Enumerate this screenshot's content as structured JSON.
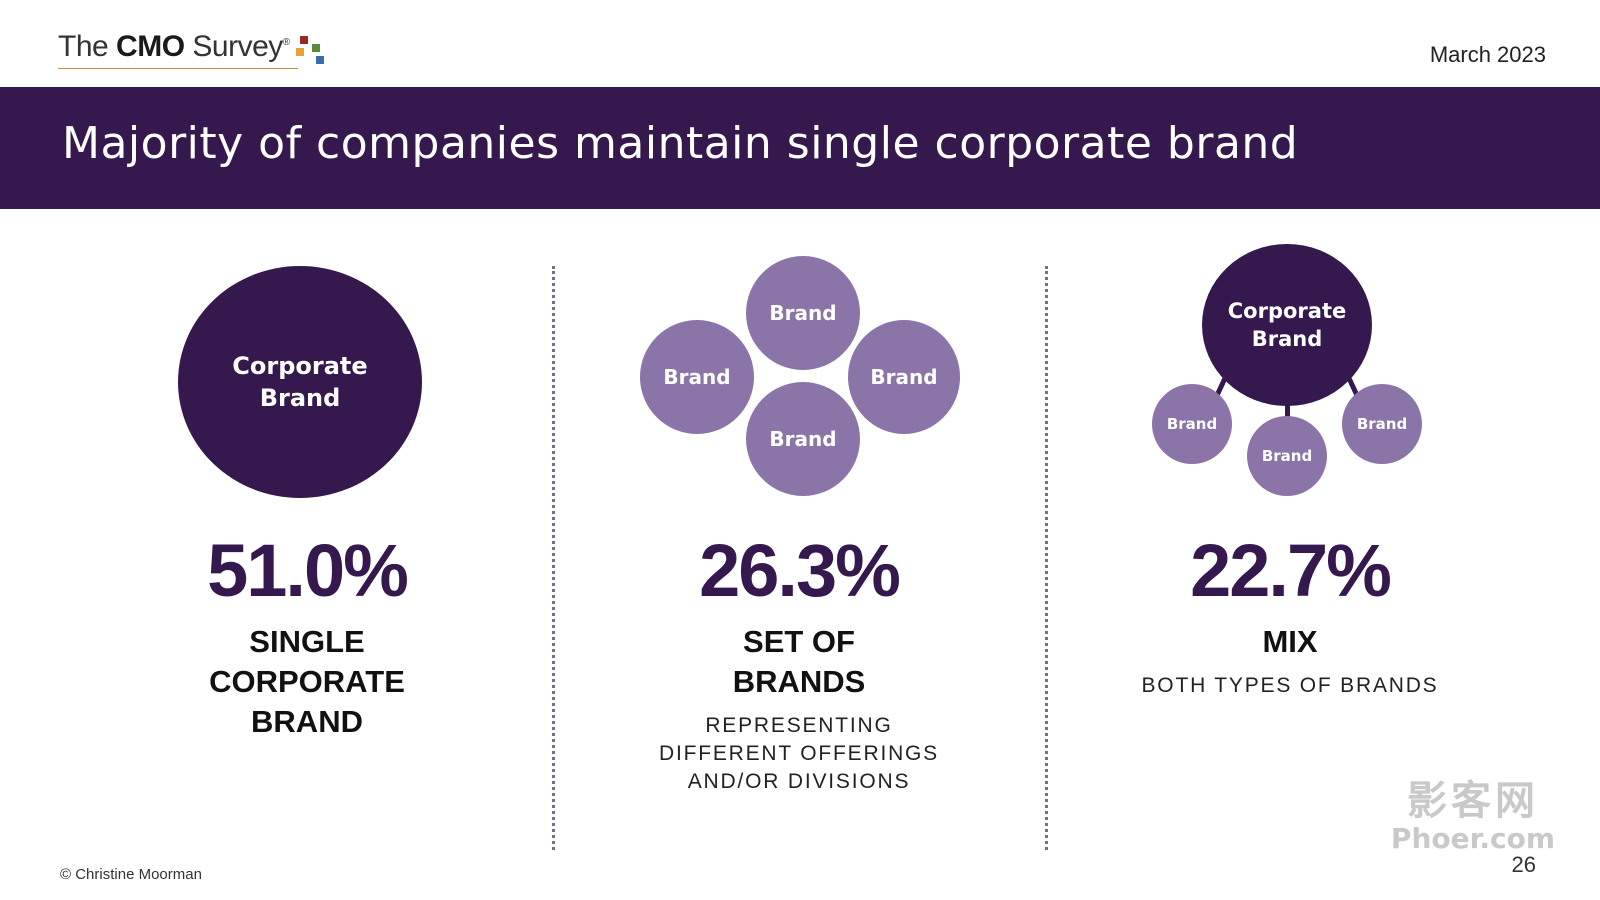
{
  "header": {
    "logo": {
      "prefix": "The",
      "cmo": "CMO",
      "suffix": "Survey",
      "registered": "®"
    },
    "date": "March 2023"
  },
  "banner": {
    "title": "Majority of companies maintain single corporate brand"
  },
  "columns": [
    {
      "circle_label_line1": "Corporate",
      "circle_label_line2": "Brand",
      "percent": "51.0%",
      "label_lines": [
        "SINGLE",
        "CORPORATE",
        "BRAND"
      ]
    },
    {
      "circles": [
        "Brand",
        "Brand",
        "Brand",
        "Brand"
      ],
      "percent": "26.3%",
      "label_lines": [
        "SET OF",
        "BRANDS"
      ],
      "sub_lines": [
        "REPRESENTING",
        "DIFFERENT OFFERINGS",
        "AND/OR DIVISIONS"
      ]
    },
    {
      "main_line1": "Corporate",
      "main_line2": "Brand",
      "small_circles": [
        "Brand",
        "Brand",
        "Brand"
      ],
      "percent": "22.7%",
      "label_lines": [
        "MIX"
      ],
      "sub_lines": [
        "BOTH TYPES OF BRANDS"
      ]
    }
  ],
  "footer": {
    "copyright": "© Christine Moorman",
    "page_number": "26"
  },
  "watermark": {
    "line1": "影客网",
    "line2": "Phoer.com"
  },
  "colors": {
    "primary": "#35184d",
    "secondary": "#8b75a8"
  }
}
